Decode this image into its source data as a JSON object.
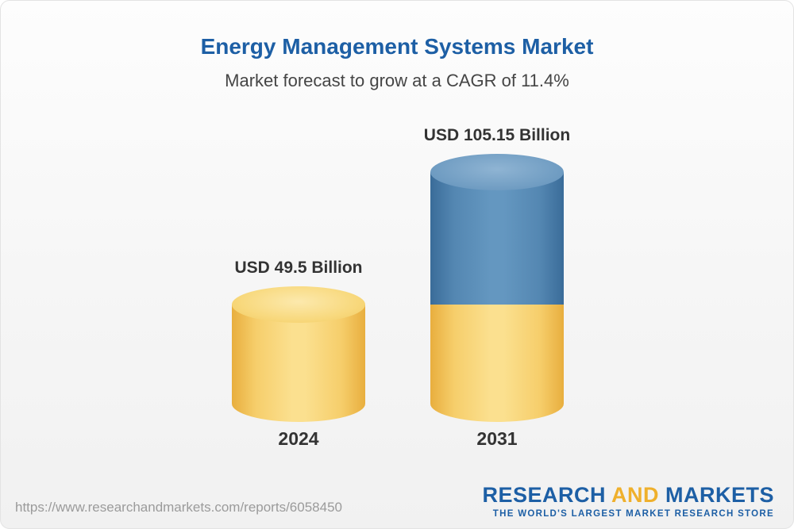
{
  "header": {
    "title": "Energy Management Systems Market",
    "subtitle": "Market forecast to grow at a CAGR of 11.4%"
  },
  "chart_data": {
    "type": "bar",
    "title": "Energy Management Systems Market",
    "subtitle": "Market forecast to grow at a CAGR of 11.4%",
    "categories": [
      "2024",
      "2031"
    ],
    "values": [
      49.5,
      105.15
    ],
    "unit": "USD Billion",
    "value_labels": [
      "USD 49.5 Billion",
      "USD 105.15 Billion"
    ],
    "cagr_percent": 11.4,
    "ylim": [
      0,
      110
    ],
    "grid": false,
    "legend": "none",
    "colors": {
      "base_gold": "#F5C95E",
      "growth_blue": "#4E81AD"
    },
    "notes": "2031 bar is stacked: gold base equal to 2024 value plus blue growth segment"
  },
  "footer": {
    "url": "https://www.researchandmarkets.com/reports/6058450",
    "logo": {
      "word1": "RESEARCH",
      "word2": "AND",
      "word3": "MARKETS",
      "tagline": "THE WORLD'S LARGEST MARKET RESEARCH STORE"
    }
  }
}
